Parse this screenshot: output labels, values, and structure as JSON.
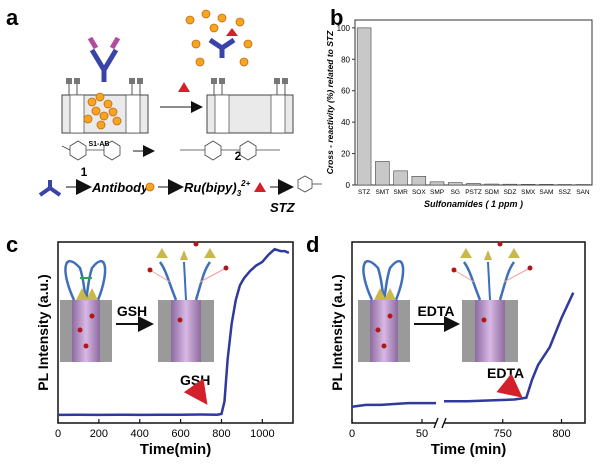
{
  "panels": {
    "a": {
      "label": "a",
      "compound_labels": [
        "S1-AB",
        "1",
        "2"
      ],
      "legend": {
        "antibody": "Antibody",
        "ru_prefix": "Ru(bipy)",
        "ru_sub": "3",
        "ru_sup": "2+",
        "analyte": "STZ"
      }
    },
    "b": {
      "label": "b"
    },
    "c": {
      "label": "c",
      "step_label": "GSH",
      "arrow_label": "GSH"
    },
    "d": {
      "label": "d",
      "step_label": "EDTA",
      "arrow_label": "EDTA"
    }
  },
  "chart_data": [
    {
      "id": "b",
      "type": "bar",
      "categories": [
        "STZ",
        "SMT",
        "SMR",
        "SOX",
        "SMP",
        "SG",
        "PSTZ",
        "SDM",
        "SDZ",
        "SMX",
        "SAM",
        "SSZ",
        "SAN"
      ],
      "values": [
        100,
        15,
        9,
        5.5,
        2,
        1.5,
        1,
        0.6,
        0.5,
        0.4,
        0.4,
        0.3,
        0.3
      ],
      "xlabel": "Sulfonamides ( 1 ppm )",
      "ylabel": "Cross - reactivity (%) related to STZ",
      "ylim": [
        0,
        105
      ],
      "yticks": [
        0,
        20,
        40,
        60,
        80,
        100
      ],
      "bar_color": "#c8c8c8"
    },
    {
      "id": "c",
      "type": "line",
      "xlabel": "Time(min)",
      "ylabel": "PL Intensity (a.u.)",
      "xlim": [
        0,
        1150
      ],
      "xticks": [
        0,
        200,
        400,
        600,
        800,
        1000
      ],
      "ylim": [
        0,
        1
      ],
      "line_color": "#2f3a9c",
      "x": [
        0,
        100,
        200,
        300,
        400,
        500,
        600,
        700,
        780,
        800,
        815,
        830,
        850,
        870,
        890,
        910,
        940,
        970,
        1000,
        1030,
        1060,
        1090,
        1110,
        1130
      ],
      "y": [
        0.045,
        0.046,
        0.045,
        0.046,
        0.045,
        0.046,
        0.046,
        0.047,
        0.046,
        0.05,
        0.12,
        0.35,
        0.55,
        0.68,
        0.76,
        0.8,
        0.84,
        0.87,
        0.89,
        0.93,
        0.96,
        0.95,
        0.95,
        0.94
      ]
    },
    {
      "id": "d",
      "type": "line",
      "xlabel": "Time (min)",
      "ylabel": "PL Intensity (a.u.)",
      "xticks": [
        "0",
        "50",
        "750",
        "800"
      ],
      "axis_break": true,
      "ylim": [
        0,
        1
      ],
      "line_color": "#2f3a9c",
      "segments": [
        {
          "x": [
            0,
            10,
            20,
            30,
            40,
            50,
            60
          ],
          "y": [
            0.09,
            0.1,
            0.1,
            0.105,
            0.11,
            0.11,
            0.11
          ]
        },
        {
          "x": [
            700,
            720,
            740,
            760,
            770,
            775,
            780,
            790,
            800,
            810
          ],
          "y": [
            0.12,
            0.12,
            0.125,
            0.13,
            0.14,
            0.24,
            0.32,
            0.42,
            0.58,
            0.72
          ]
        }
      ]
    }
  ]
}
